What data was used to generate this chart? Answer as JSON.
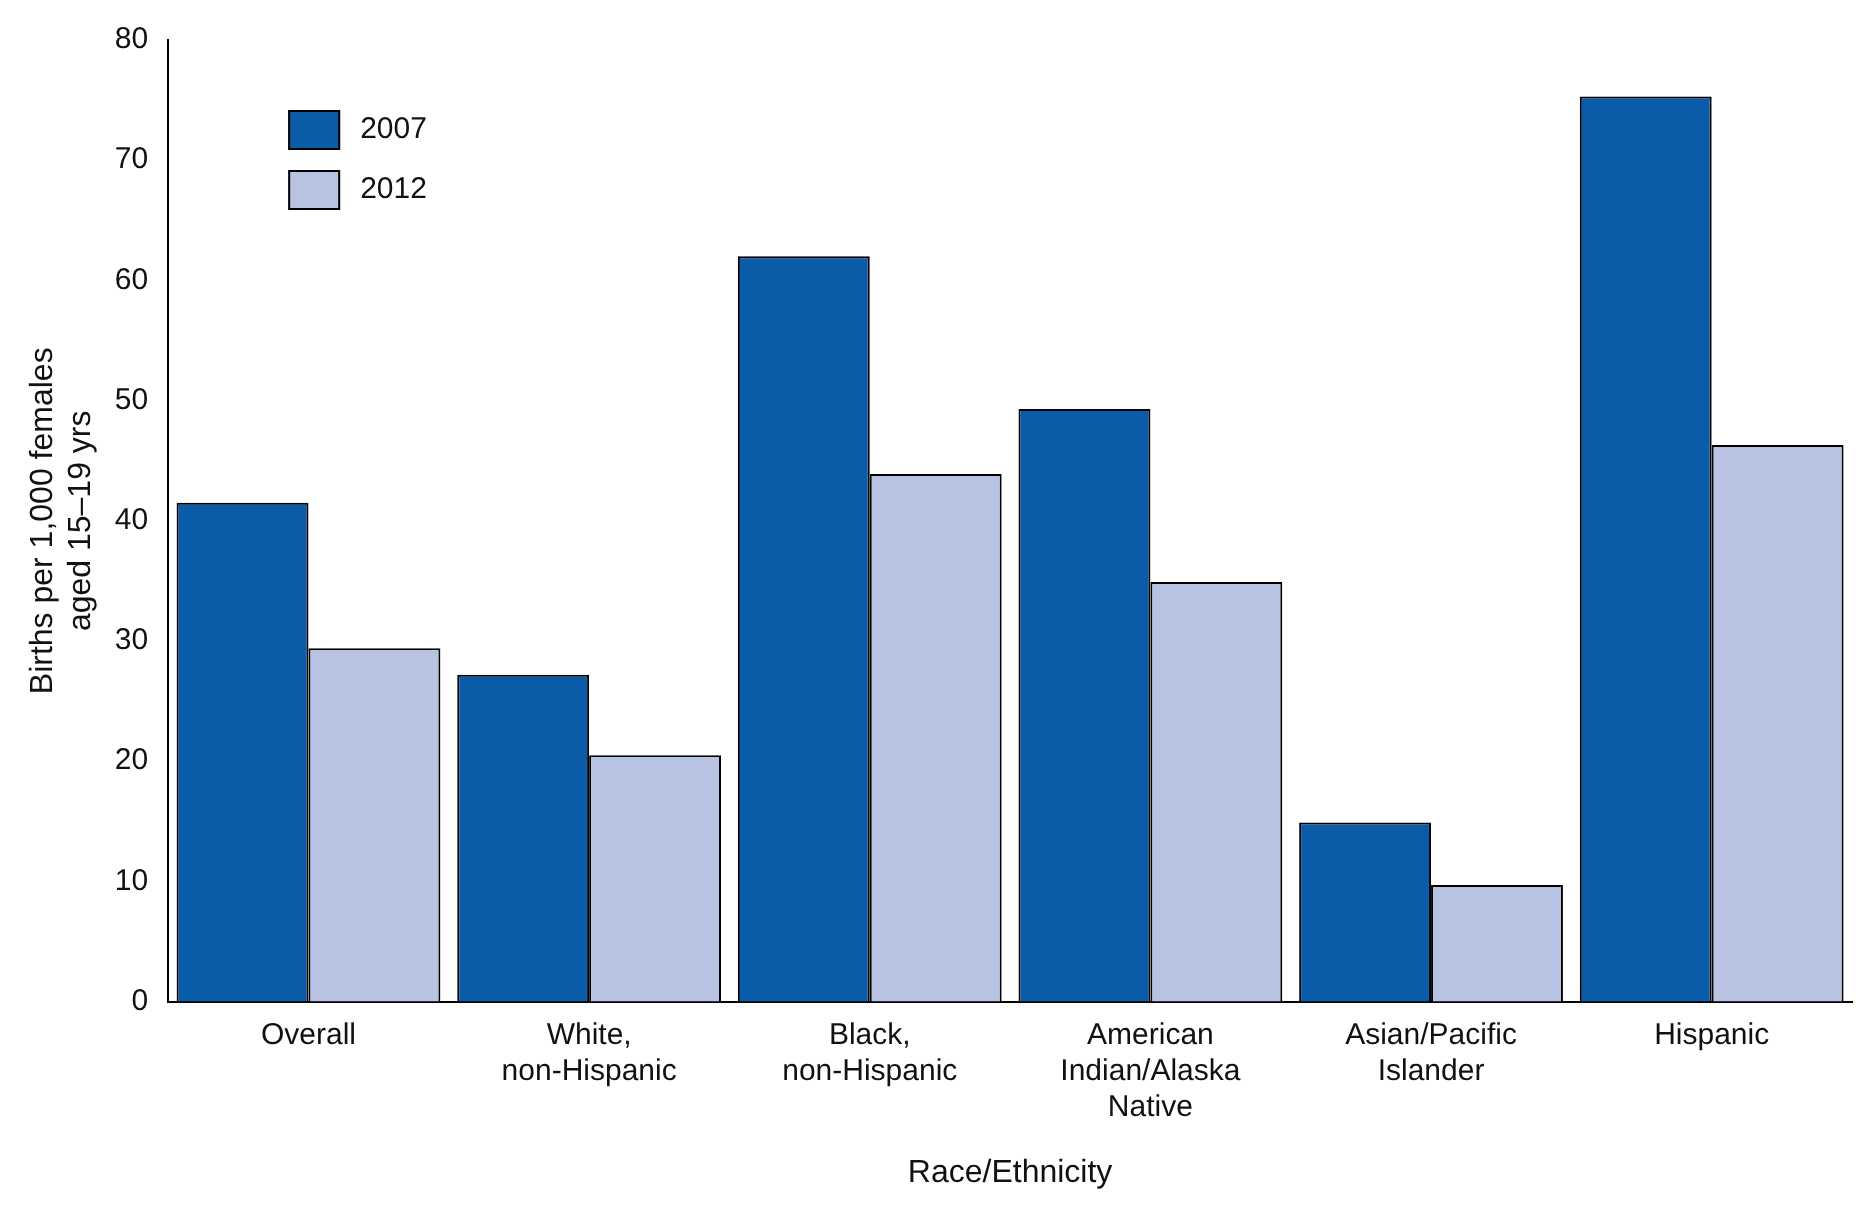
{
  "chart_data": {
    "type": "bar",
    "xlabel": "Race/Ethnicity",
    "ylabel": "Births per 1,000 females aged 15–19 yrs",
    "categories": [
      "Overall",
      "White, non-Hispanic",
      "Black, non-Hispanic",
      "American Indian/Alaska Native",
      "Asian/Pacific Islander",
      "Hispanic"
    ],
    "series": [
      {
        "name": "2007",
        "color": "#0a5ca8",
        "values": [
          41.5,
          27.2,
          62.0,
          49.3,
          14.9,
          75.3
        ]
      },
      {
        "name": "2012",
        "color": "#b8c3e3",
        "values": [
          29.4,
          20.5,
          43.9,
          34.9,
          9.7,
          46.3
        ]
      }
    ],
    "ylim": [
      0,
      80
    ],
    "yticks": [
      0,
      10,
      20,
      30,
      40,
      50,
      60,
      70,
      80
    ],
    "grid": false,
    "legend": "top left"
  }
}
